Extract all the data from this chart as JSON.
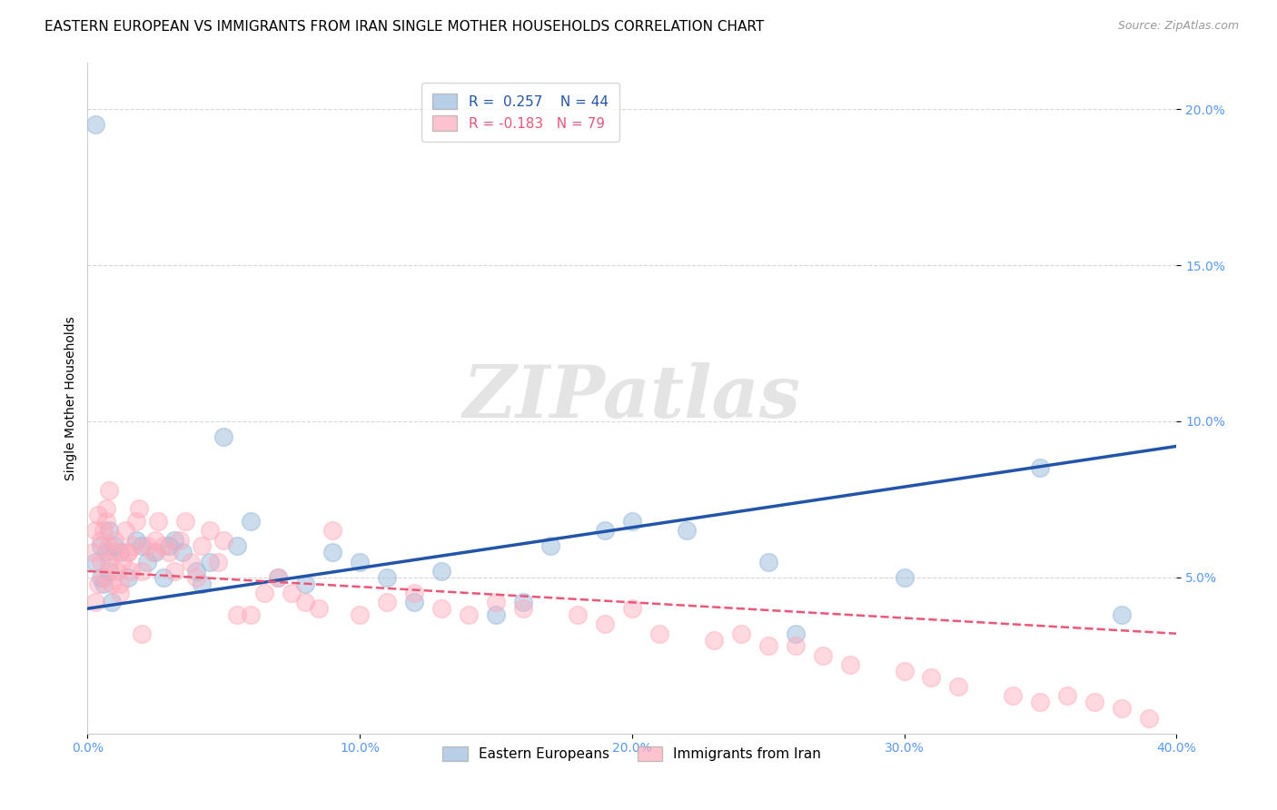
{
  "title": "EASTERN EUROPEAN VS IMMIGRANTS FROM IRAN SINGLE MOTHER HOUSEHOLDS CORRELATION CHART",
  "source": "Source: ZipAtlas.com",
  "ylabel": "Single Mother Households",
  "xmin": 0.0,
  "xmax": 0.4,
  "ymin": 0.0,
  "ymax": 0.215,
  "yticks": [
    0.05,
    0.1,
    0.15,
    0.2
  ],
  "ytick_labels": [
    "5.0%",
    "10.0%",
    "15.0%",
    "20.0%"
  ],
  "xticks": [
    0.0,
    0.1,
    0.2,
    0.3,
    0.4
  ],
  "xtick_labels": [
    "0.0%",
    "10.0%",
    "20.0%",
    "30.0%",
    "40.0%"
  ],
  "legend_labels": [
    "Eastern Europeans",
    "Immigrants from Iran"
  ],
  "blue_color": "#99BBDD",
  "pink_color": "#FFAABB",
  "blue_line_color": "#2255AA",
  "pink_line_color": "#EE5577",
  "blue_R": 0.257,
  "blue_N": 44,
  "pink_R": -0.183,
  "pink_N": 79,
  "watermark": "ZIPatlas",
  "title_fontsize": 11,
  "axis_label_fontsize": 10,
  "tick_fontsize": 10,
  "blue_line_y0": 0.04,
  "blue_line_y1": 0.092,
  "pink_line_y0": 0.052,
  "pink_line_y1": 0.032,
  "blue_scatter_x": [
    0.003,
    0.005,
    0.005,
    0.006,
    0.007,
    0.008,
    0.008,
    0.009,
    0.01,
    0.012,
    0.015,
    0.018,
    0.02,
    0.022,
    0.025,
    0.028,
    0.03,
    0.032,
    0.035,
    0.04,
    0.042,
    0.045,
    0.05,
    0.055,
    0.06,
    0.07,
    0.08,
    0.09,
    0.1,
    0.11,
    0.12,
    0.13,
    0.15,
    0.16,
    0.17,
    0.19,
    0.2,
    0.22,
    0.25,
    0.26,
    0.3,
    0.35,
    0.38,
    0.003
  ],
  "blue_scatter_y": [
    0.055,
    0.05,
    0.06,
    0.048,
    0.058,
    0.052,
    0.065,
    0.042,
    0.06,
    0.058,
    0.05,
    0.062,
    0.06,
    0.055,
    0.058,
    0.05,
    0.06,
    0.062,
    0.058,
    0.052,
    0.048,
    0.055,
    0.095,
    0.06,
    0.068,
    0.05,
    0.048,
    0.058,
    0.055,
    0.05,
    0.042,
    0.052,
    0.038,
    0.042,
    0.06,
    0.065,
    0.068,
    0.065,
    0.055,
    0.032,
    0.05,
    0.085,
    0.038,
    0.195
  ],
  "pink_scatter_x": [
    0.002,
    0.003,
    0.004,
    0.005,
    0.005,
    0.006,
    0.007,
    0.007,
    0.008,
    0.008,
    0.009,
    0.01,
    0.01,
    0.011,
    0.012,
    0.013,
    0.014,
    0.015,
    0.016,
    0.017,
    0.018,
    0.019,
    0.02,
    0.022,
    0.024,
    0.025,
    0.026,
    0.028,
    0.03,
    0.032,
    0.034,
    0.036,
    0.038,
    0.04,
    0.042,
    0.045,
    0.048,
    0.05,
    0.055,
    0.06,
    0.065,
    0.07,
    0.075,
    0.08,
    0.085,
    0.09,
    0.1,
    0.11,
    0.12,
    0.13,
    0.14,
    0.15,
    0.16,
    0.18,
    0.19,
    0.2,
    0.21,
    0.23,
    0.24,
    0.25,
    0.26,
    0.27,
    0.28,
    0.3,
    0.31,
    0.32,
    0.34,
    0.35,
    0.36,
    0.37,
    0.38,
    0.39,
    0.003,
    0.004,
    0.006,
    0.008,
    0.012,
    0.015,
    0.02
  ],
  "pink_scatter_y": [
    0.058,
    0.065,
    0.07,
    0.062,
    0.055,
    0.05,
    0.068,
    0.072,
    0.055,
    0.06,
    0.048,
    0.062,
    0.058,
    0.052,
    0.048,
    0.055,
    0.065,
    0.058,
    0.052,
    0.06,
    0.068,
    0.072,
    0.052,
    0.06,
    0.058,
    0.062,
    0.068,
    0.06,
    0.058,
    0.052,
    0.062,
    0.068,
    0.055,
    0.05,
    0.06,
    0.065,
    0.055,
    0.062,
    0.038,
    0.038,
    0.045,
    0.05,
    0.045,
    0.042,
    0.04,
    0.065,
    0.038,
    0.042,
    0.045,
    0.04,
    0.038,
    0.042,
    0.04,
    0.038,
    0.035,
    0.04,
    0.032,
    0.03,
    0.032,
    0.028,
    0.028,
    0.025,
    0.022,
    0.02,
    0.018,
    0.015,
    0.012,
    0.01,
    0.012,
    0.01,
    0.008,
    0.005,
    0.042,
    0.048,
    0.065,
    0.078,
    0.045,
    0.058,
    0.032
  ]
}
